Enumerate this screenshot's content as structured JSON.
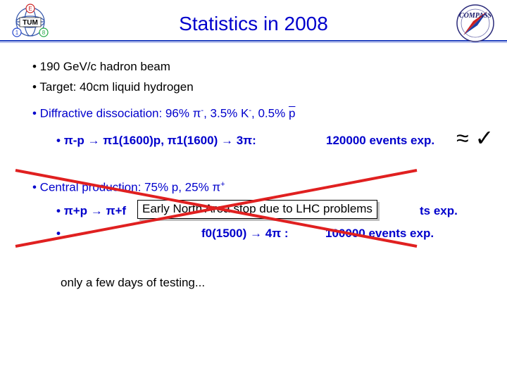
{
  "header": {
    "title": "Statistics in 2008",
    "left_logo_letters": {
      "top": "E",
      "left": "1",
      "right": "8",
      "center": "TUM"
    },
    "right_logo_text": "COMPASS",
    "rule_color": "#1f3fbf"
  },
  "bullets": {
    "beam": "• 190 GeV/c hadron beam",
    "target": "• Target: 40cm liquid hydrogen",
    "diffractive": {
      "label": "• Diffractive dissociation: 96% π",
      "pi_sup": "-",
      "mid": ", 3.5% K",
      "k_sup": "-",
      "end": ", 0.5% ",
      "pbar": "p"
    },
    "diffractive_reaction": {
      "bullet": "•",
      "text": "π-p → π1(1600)p,   π1(1600) → 3π:",
      "events": "120000 events exp.",
      "approx": "≈",
      "check": "✓"
    },
    "central": {
      "label": "• Central production: 75% p, 25% π",
      "sup": "+"
    },
    "central_reaction_1": {
      "bullet": "•",
      "text": "π+p → π+f",
      "events": "ts exp."
    },
    "central_reaction_2": {
      "bullet": "•",
      "text": "f0(1500) → 4π  :",
      "events": "100000 events exp."
    },
    "note": "Early North Area stop due to LHC problems",
    "testing": "only a few days of testing..."
  },
  "colors": {
    "title": "#0000cc",
    "blue_text": "#0000cc",
    "cross": "#e02020"
  }
}
